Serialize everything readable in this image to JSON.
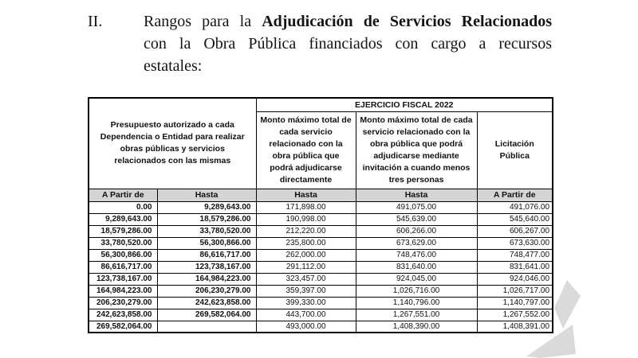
{
  "heading": {
    "numeral": "II.",
    "line1_regular": "Rangos para la ",
    "line1_bold": "Adjudicación de Servicios Relacionados",
    "line2": "con la Obra Pública financiados con cargo a recursos",
    "line3": "estatales:"
  },
  "table": {
    "fiscal_year_header": "EJERCICIO FISCAL 2022",
    "left_group_header": "Presupuesto autorizado a cada Dependencia o Entidad para realizar obras públicas y servicios relacionados con las mismas",
    "direct_award_header": "Monto máximo total de cada servicio relacionado con la obra pública que podrá adjudicarse directamente",
    "invitation_header": "Monto máximo total de cada servicio relacionado con la obra pública que podrá adjudicarse mediante invitación a cuando menos tres personas",
    "public_bid_header": "Licitación Pública",
    "subheaders": [
      "A Partir de",
      "Hasta",
      "Hasta",
      "Hasta",
      "A Partir de"
    ],
    "rows": [
      [
        "0.00",
        "9,289,643.00",
        "171,898.00",
        "491,075.00",
        "491,076.00"
      ],
      [
        "9,289,643.00",
        "18,579,286.00",
        "190,998.00",
        "545,639.00",
        "545,640.00"
      ],
      [
        "18,579,286.00",
        "33,780,520.00",
        "212,220.00",
        "606,266.00",
        "606,267.00"
      ],
      [
        "33,780,520.00",
        "56,300,866.00",
        "235,800.00",
        "673,629.00",
        "673,630.00"
      ],
      [
        "56,300,866.00",
        "86,616,717.00",
        "262,000.00",
        "748,476.00",
        "748,477.00"
      ],
      [
        "86,616,717.00",
        "123,738,167.00",
        "291,112.00",
        "831,640.00",
        "831,641.00"
      ],
      [
        "123,738,167.00",
        "164,984,223.00",
        "323,457.00",
        "924,045.00",
        "924,046.00"
      ],
      [
        "164,984,223.00",
        "206,230,279.00",
        "359,397.00",
        "1,026,716.00",
        "1,026,717.00"
      ],
      [
        "206,230,279.00",
        "242,623,858.00",
        "399,330.00",
        "1,140,796.00",
        "1,140,797.00"
      ],
      [
        "242,623,858.00",
        "269,582,064.00",
        "443,700.00",
        "1,267,551.00",
        "1,267,552.00"
      ],
      [
        "269,582,064.00",
        "",
        "493,000.00",
        "1,408,390.00",
        "1,408,391.00"
      ]
    ]
  },
  "colors": {
    "subheader_bg": "#d4d4d4",
    "border": "#000000",
    "watermark": "#dadada"
  }
}
